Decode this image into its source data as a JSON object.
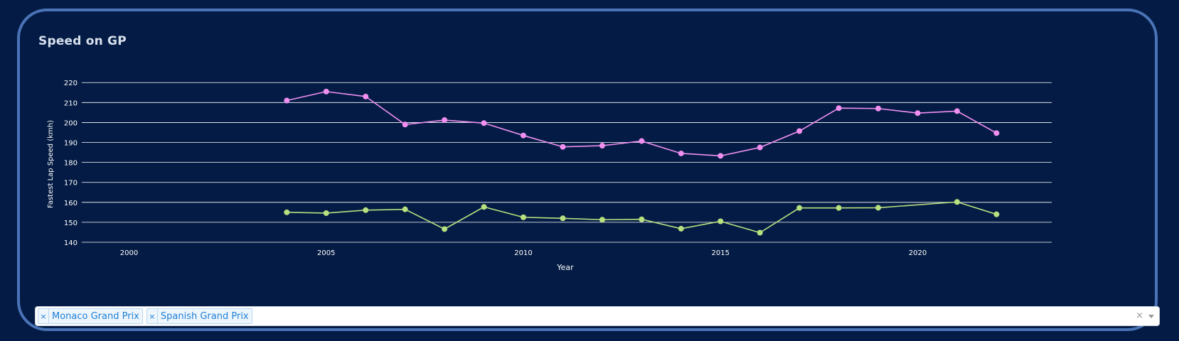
{
  "header": {
    "title": "Speed on GP"
  },
  "chart_data": {
    "type": "line",
    "xlabel": "Year",
    "ylabel": "Fastest Lap Speed (kmh)",
    "xlim": [
      1998.8,
      2023.4
    ],
    "ylim": [
      140,
      224
    ],
    "xticks": [
      2000,
      2005,
      2010,
      2015,
      2020
    ],
    "yticks": [
      140,
      150,
      160,
      170,
      180,
      190,
      200,
      210,
      220
    ],
    "grid": true,
    "series": [
      {
        "color": "#f08ff0",
        "x": [
          2004,
          2005,
          2006,
          2007,
          2008,
          2009,
          2010,
          2011,
          2012,
          2013,
          2014,
          2015,
          2016,
          2017,
          2018,
          2019,
          2020,
          2021,
          2022
        ],
        "values": [
          211,
          215.5,
          213,
          199,
          201.2,
          199.7,
          193.5,
          187.8,
          188.4,
          190.7,
          184.5,
          183.3,
          187.5,
          195.7,
          207.2,
          207,
          204.7,
          205.7,
          194.7
        ]
      },
      {
        "color": "#b8e07f",
        "x": [
          2004,
          2005,
          2006,
          2007,
          2008,
          2009,
          2010,
          2011,
          2012,
          2013,
          2014,
          2015,
          2016,
          2017,
          2018,
          2019,
          2021,
          2022
        ],
        "values": [
          155,
          154.6,
          156.1,
          156.5,
          146.6,
          157.7,
          152.5,
          152,
          151.3,
          151.5,
          146.8,
          150.5,
          144.8,
          157.2,
          157.2,
          157.3,
          160.2,
          154
        ]
      }
    ]
  },
  "filter": {
    "tags": [
      {
        "label": "Monaco Grand Prix",
        "remove": "×"
      },
      {
        "label": "Spanish Grand Prix",
        "remove": "×"
      }
    ],
    "clear": "×"
  }
}
